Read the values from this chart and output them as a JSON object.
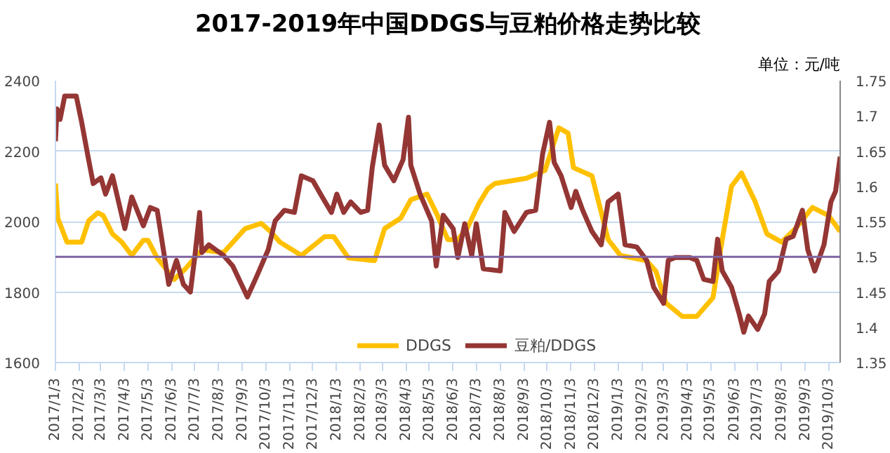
{
  "chart_data": {
    "type": "line",
    "title": "2017-2019年中国DDGS与豆粕价格走势比较",
    "annotations": [
      "单位：元/吨"
    ],
    "xlim": [
      "2017-01-03",
      "2019-10-18"
    ],
    "xticks": [
      {
        "value": "2017-01-03",
        "label": "2017/1/3"
      },
      {
        "value": "2017-02-03",
        "label": "2017/2/3"
      },
      {
        "value": "2017-03-03",
        "label": "2017/3/3"
      },
      {
        "value": "2017-04-03",
        "label": "2017/4/3"
      },
      {
        "value": "2017-05-03",
        "label": "2017/5/3"
      },
      {
        "value": "2017-06-03",
        "label": "2017/6/3"
      },
      {
        "value": "2017-07-03",
        "label": "2017/7/3"
      },
      {
        "value": "2017-08-03",
        "label": "2017/8/3"
      },
      {
        "value": "2017-09-03",
        "label": "2017/9/3"
      },
      {
        "value": "2017-10-03",
        "label": "2017/10/3"
      },
      {
        "value": "2017-11-03",
        "label": "2017/11/3"
      },
      {
        "value": "2017-12-03",
        "label": "2017/12/3"
      },
      {
        "value": "2018-01-03",
        "label": "2018/1/3"
      },
      {
        "value": "2018-02-03",
        "label": "2018/2/3"
      },
      {
        "value": "2018-03-03",
        "label": "2018/3/3"
      },
      {
        "value": "2018-04-03",
        "label": "2018/4/3"
      },
      {
        "value": "2018-05-03",
        "label": "2018/5/3"
      },
      {
        "value": "2018-06-03",
        "label": "2018/6/3"
      },
      {
        "value": "2018-07-03",
        "label": "2018/7/3"
      },
      {
        "value": "2018-08-03",
        "label": "2018/8/3"
      },
      {
        "value": "2018-09-03",
        "label": "2018/9/3"
      },
      {
        "value": "2018-10-03",
        "label": "2018/10/3"
      },
      {
        "value": "2018-11-03",
        "label": "2018/11/3"
      },
      {
        "value": "2018-12-03",
        "label": "2018/12/3"
      },
      {
        "value": "2019-01-03",
        "label": "2019/1/3"
      },
      {
        "value": "2019-02-03",
        "label": "2019/2/3"
      },
      {
        "value": "2019-03-03",
        "label": "2019/3/3"
      },
      {
        "value": "2019-04-03",
        "label": "2019/4/3"
      },
      {
        "value": "2019-05-03",
        "label": "2019/5/3"
      },
      {
        "value": "2019-06-03",
        "label": "2019/6/3"
      },
      {
        "value": "2019-07-03",
        "label": "2019/7/3"
      },
      {
        "value": "2019-08-03",
        "label": "2019/8/3"
      },
      {
        "value": "2019-09-03",
        "label": "2019/9/3"
      },
      {
        "value": "2019-10-03",
        "label": "2019/10/3"
      }
    ],
    "ylim": [
      1600,
      2400
    ],
    "yticks": [
      1600,
      1800,
      2000,
      2200,
      2400
    ],
    "y2lim": [
      1.35,
      1.75
    ],
    "y2ticks": [
      1.35,
      1.4,
      1.45,
      1.5,
      1.55,
      1.6,
      1.65,
      1.7,
      1.75
    ],
    "grid": "y",
    "legend": "bottom right",
    "marker": "none",
    "line_style": "solid",
    "ref_lines": [
      {
        "axis": "y2",
        "value": 1.5,
        "color": "#8064a2"
      }
    ],
    "series": [
      {
        "name": "DDGS",
        "color": "#ffc000",
        "x": [
          "2017-01-03",
          "2017-01-06",
          "2017-01-18",
          "2017-02-06",
          "2017-02-15",
          "2017-02-27",
          "2017-03-06",
          "2017-03-18",
          "2017-03-30",
          "2017-04-12",
          "2017-04-27",
          "2017-05-03",
          "2017-05-15",
          "2017-06-06",
          "2017-06-21",
          "2017-07-12",
          "2017-08-09",
          "2017-09-06",
          "2017-09-27",
          "2017-10-09",
          "2017-10-21",
          "2017-11-18",
          "2017-12-18",
          "2017-12-30",
          "2018-01-18",
          "2018-02-21",
          "2018-03-06",
          "2018-03-27",
          "2018-04-09",
          "2018-04-30",
          "2018-05-12",
          "2018-05-27",
          "2018-06-09",
          "2018-06-21",
          "2018-07-06",
          "2018-07-18",
          "2018-07-27",
          "2018-09-06",
          "2018-09-30",
          "2018-10-18",
          "2018-10-30",
          "2018-11-06",
          "2018-11-30",
          "2018-12-21",
          "2019-01-06",
          "2019-02-09",
          "2019-02-21",
          "2019-03-06",
          "2019-03-27",
          "2019-04-15",
          "2019-05-06",
          "2019-05-18",
          "2019-05-30",
          "2019-06-12",
          "2019-06-30",
          "2019-07-15",
          "2019-08-03",
          "2019-08-21",
          "2019-09-12",
          "2019-10-03",
          "2019-10-18"
        ],
        "values": [
          2108,
          2010,
          1942,
          1942,
          2002,
          2025,
          2017,
          1965,
          1942,
          1904,
          1947,
          1947,
          1897,
          1836,
          1867,
          1920,
          1912,
          1980,
          1995,
          1972,
          1942,
          1904,
          1957,
          1957,
          1897,
          1889,
          1980,
          2010,
          2062,
          2078,
          2025,
          1949,
          1949,
          1980,
          2050,
          2093,
          2108,
          2123,
          2145,
          2266,
          2251,
          2153,
          2130,
          1949,
          1904,
          1889,
          1859,
          1769,
          1731,
          1731,
          1784,
          1949,
          2100,
          2138,
          2055,
          1965,
          1942,
          1980,
          2040,
          2017,
          1972
        ]
      },
      {
        "name": "豆粕/DDGS",
        "color": "#943634",
        "axis": "y2",
        "x": [
          "2017-01-03",
          "2017-01-05",
          "2017-01-09",
          "2017-01-15",
          "2017-01-30",
          "2017-02-06",
          "2017-02-15",
          "2017-02-21",
          "2017-03-03",
          "2017-03-09",
          "2017-03-18",
          "2017-04-03",
          "2017-04-12",
          "2017-04-27",
          "2017-05-06",
          "2017-05-15",
          "2017-05-30",
          "2017-06-09",
          "2017-06-18",
          "2017-06-27",
          "2017-07-03",
          "2017-07-09",
          "2017-07-12",
          "2017-07-21",
          "2017-08-09",
          "2017-08-21",
          "2017-09-09",
          "2017-09-21",
          "2017-10-06",
          "2017-10-15",
          "2017-10-27",
          "2017-11-09",
          "2017-11-18",
          "2017-12-03",
          "2017-12-15",
          "2017-12-27",
          "2018-01-03",
          "2018-01-12",
          "2018-01-21",
          "2018-02-03",
          "2018-02-12",
          "2018-02-18",
          "2018-02-27",
          "2018-03-06",
          "2018-03-18",
          "2018-03-30",
          "2018-04-06",
          "2018-04-09",
          "2018-04-21",
          "2018-05-06",
          "2018-05-12",
          "2018-05-21",
          "2018-06-03",
          "2018-06-09",
          "2018-06-18",
          "2018-06-27",
          "2018-07-03",
          "2018-07-12",
          "2018-08-03",
          "2018-08-09",
          "2018-08-21",
          "2018-09-06",
          "2018-09-18",
          "2018-09-27",
          "2018-10-06",
          "2018-10-12",
          "2018-10-21",
          "2018-11-03",
          "2018-11-09",
          "2018-11-18",
          "2018-11-30",
          "2018-12-12",
          "2018-12-21",
          "2019-01-03",
          "2019-01-12",
          "2019-01-27",
          "2019-02-09",
          "2019-02-18",
          "2019-03-03",
          "2019-03-09",
          "2019-03-18",
          "2019-04-06",
          "2019-04-15",
          "2019-04-24",
          "2019-05-06",
          "2019-05-12",
          "2019-05-18",
          "2019-05-30",
          "2019-06-09",
          "2019-06-15",
          "2019-06-21",
          "2019-07-03",
          "2019-07-12",
          "2019-07-18",
          "2019-07-30",
          "2019-08-09",
          "2019-08-18",
          "2019-08-30",
          "2019-09-06",
          "2019-09-15",
          "2019-09-27",
          "2019-10-06",
          "2019-10-12",
          "2019-10-18"
        ],
        "values": [
          1.664,
          1.71,
          1.695,
          1.728,
          1.728,
          1.691,
          1.638,
          1.604,
          1.612,
          1.589,
          1.615,
          1.54,
          1.585,
          1.544,
          1.57,
          1.566,
          1.461,
          1.495,
          1.461,
          1.45,
          1.502,
          1.563,
          1.506,
          1.517,
          1.502,
          1.487,
          1.443,
          1.472,
          1.51,
          1.551,
          1.566,
          1.563,
          1.615,
          1.608,
          1.585,
          1.563,
          1.589,
          1.563,
          1.578,
          1.563,
          1.566,
          1.627,
          1.687,
          1.63,
          1.608,
          1.638,
          1.698,
          1.63,
          1.589,
          1.551,
          1.487,
          1.559,
          1.54,
          1.499,
          1.547,
          1.502,
          1.547,
          1.483,
          1.48,
          1.563,
          1.536,
          1.563,
          1.566,
          1.646,
          1.691,
          1.634,
          1.615,
          1.57,
          1.593,
          1.566,
          1.536,
          1.517,
          1.578,
          1.589,
          1.517,
          1.514,
          1.495,
          1.457,
          1.434,
          1.495,
          1.499,
          1.499,
          1.495,
          1.468,
          1.465,
          1.525,
          1.48,
          1.457,
          1.419,
          1.393,
          1.416,
          1.397,
          1.419,
          1.465,
          1.48,
          1.525,
          1.529,
          1.566,
          1.51,
          1.48,
          1.517,
          1.578,
          1.593,
          1.642
        ]
      }
    ]
  }
}
